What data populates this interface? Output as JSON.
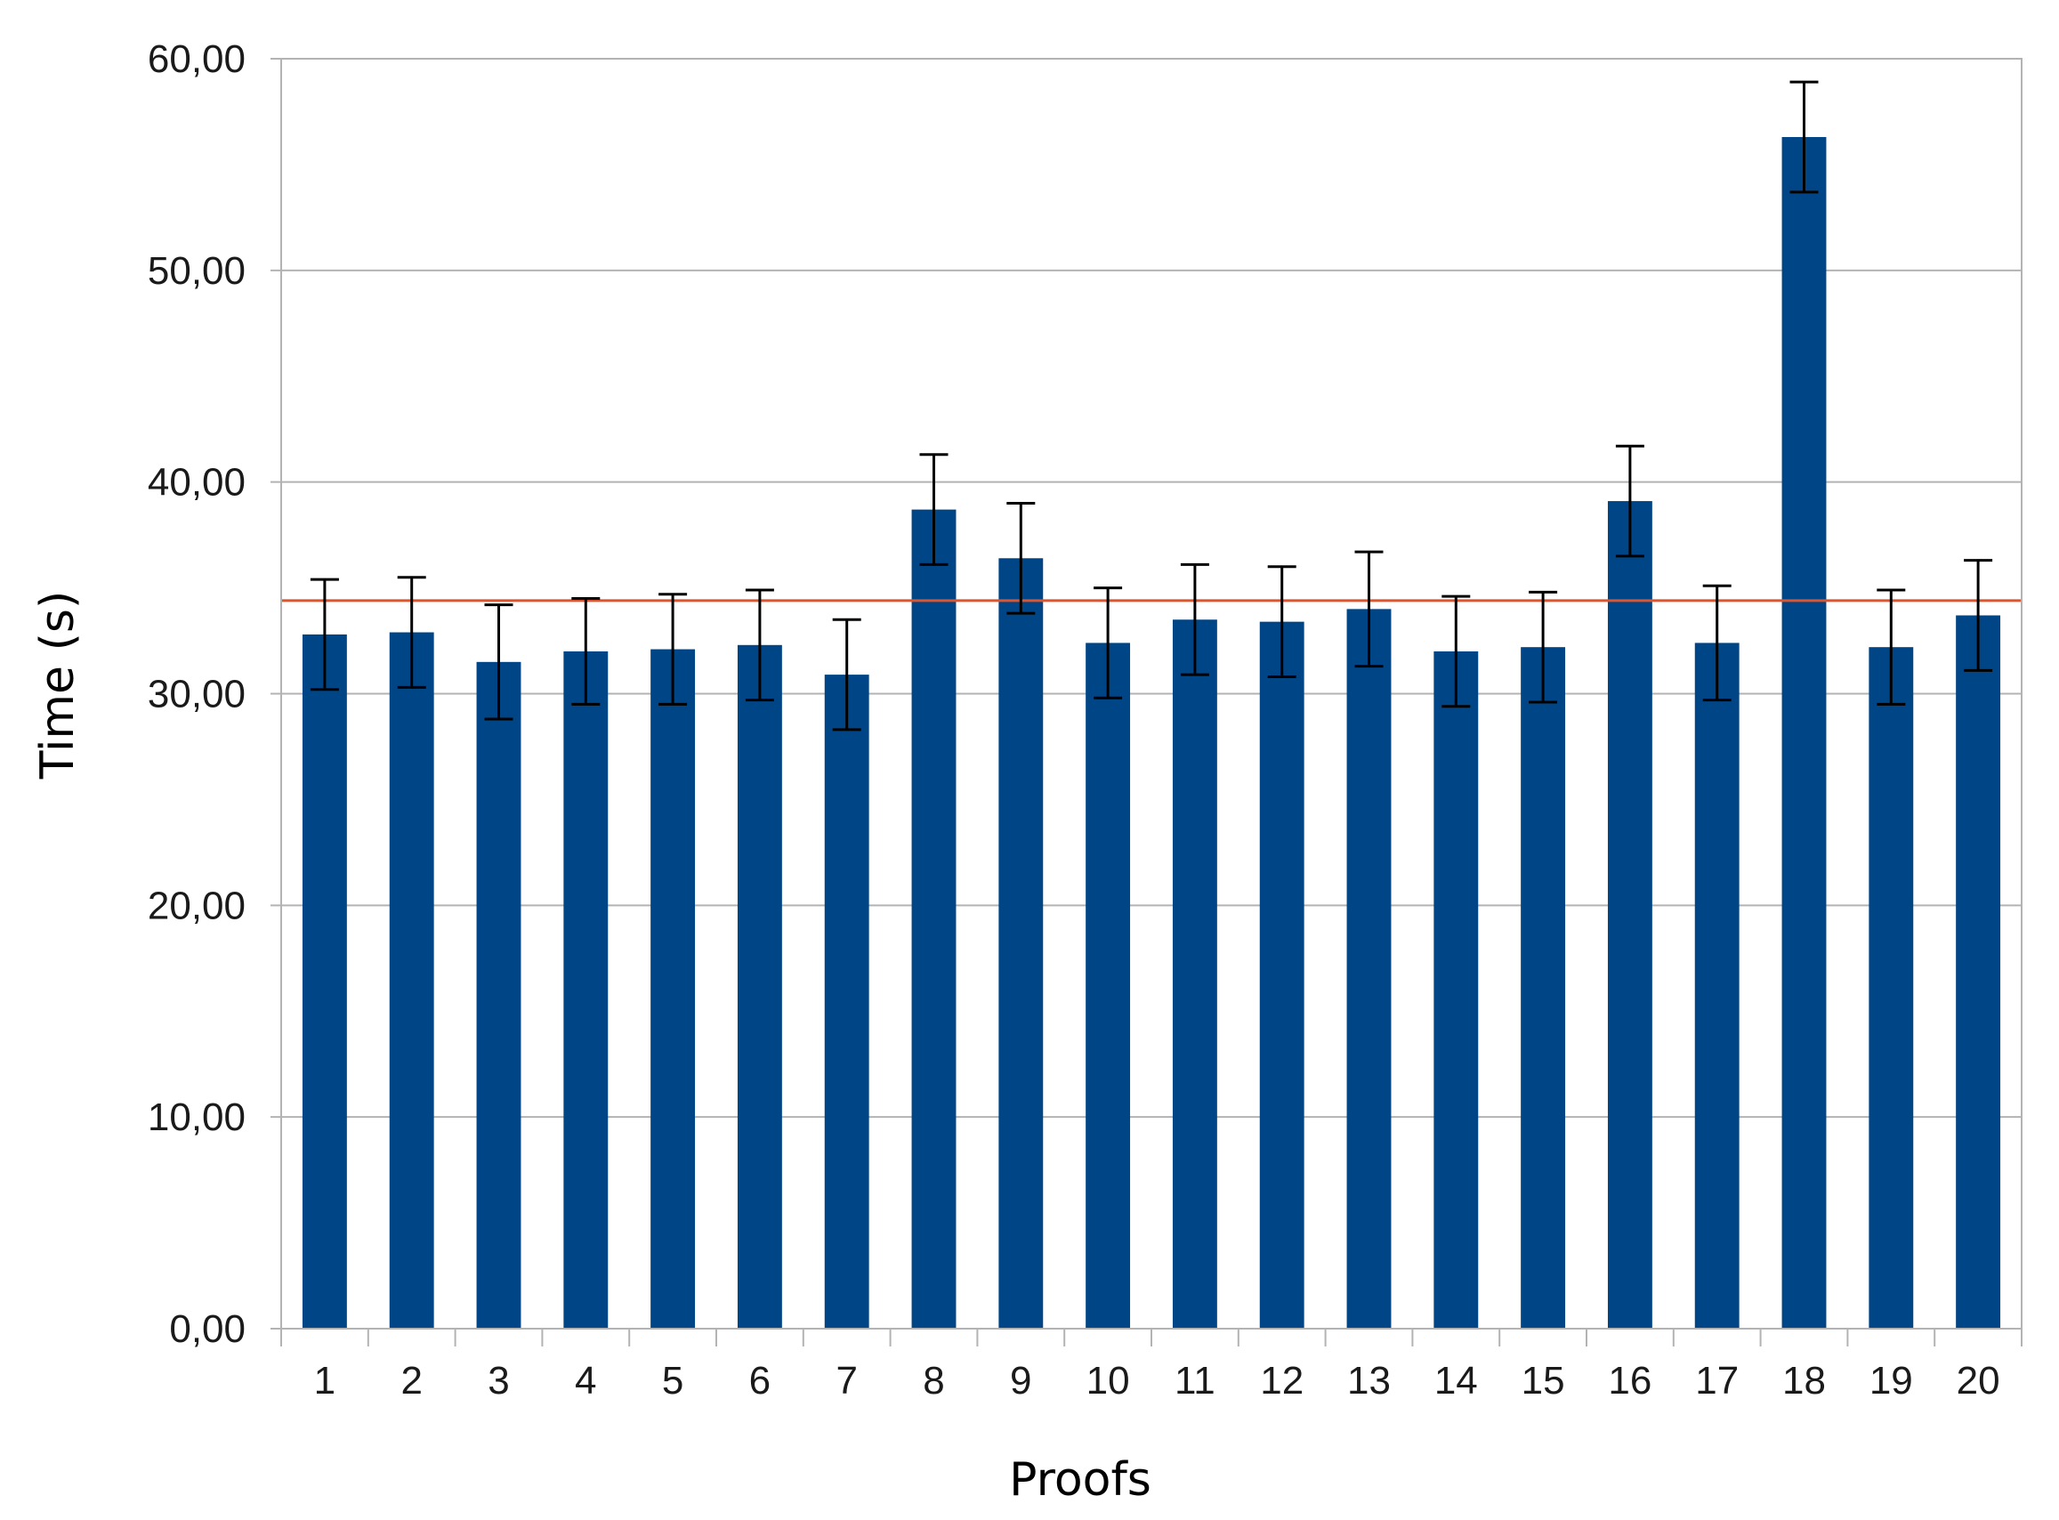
{
  "chart_data": {
    "type": "bar",
    "title": "",
    "xlabel": "Proofs",
    "ylabel": "Time (s)",
    "categories": [
      "1",
      "2",
      "3",
      "4",
      "5",
      "6",
      "7",
      "8",
      "9",
      "10",
      "11",
      "12",
      "13",
      "14",
      "15",
      "16",
      "17",
      "18",
      "19",
      "20"
    ],
    "values": [
      32.8,
      32.9,
      31.5,
      32.0,
      32.1,
      32.3,
      30.9,
      38.7,
      36.4,
      32.4,
      33.5,
      33.4,
      34.0,
      32.0,
      32.2,
      39.1,
      32.4,
      56.3,
      32.2,
      33.7
    ],
    "error": [
      2.6,
      2.6,
      2.7,
      2.5,
      2.6,
      2.6,
      2.6,
      2.6,
      2.6,
      2.6,
      2.6,
      2.6,
      2.7,
      2.6,
      2.6,
      2.6,
      2.7,
      2.6,
      2.7,
      2.6
    ],
    "reference_line": {
      "value": 34.4,
      "color": "#e0542b"
    },
    "ylim": [
      0,
      60
    ],
    "yticks": [
      0,
      10,
      20,
      30,
      40,
      50,
      60
    ],
    "ytick_labels": [
      "0,00",
      "10,00",
      "20,00",
      "30,00",
      "40,00",
      "50,00",
      "60,00"
    ],
    "grid": true,
    "legend": "none",
    "bar_color": "#004586"
  }
}
